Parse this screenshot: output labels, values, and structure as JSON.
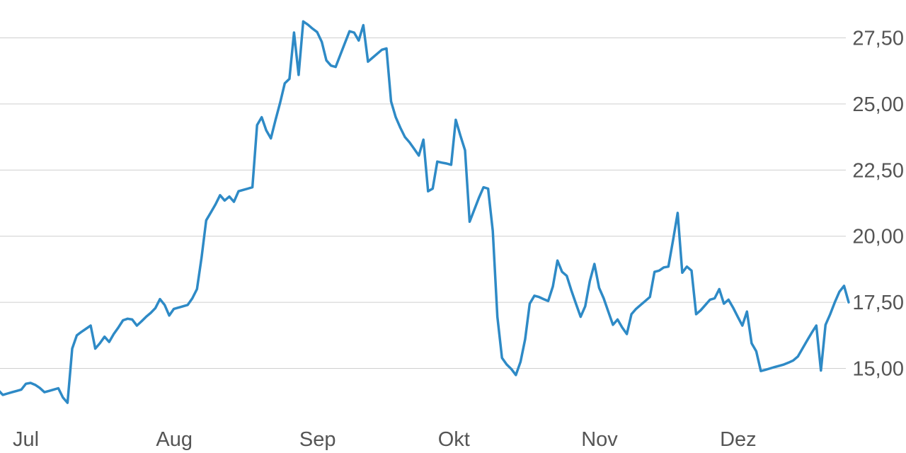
{
  "chart_data": {
    "type": "line",
    "title": "",
    "xlabel": "",
    "ylabel": "",
    "grid": true,
    "y_axis_side": "right",
    "ylim": [
      13.4,
      28.6
    ],
    "y_ticks": [
      15,
      17.5,
      20,
      22.5,
      25,
      27.5
    ],
    "y_tick_labels": [
      "15,00",
      "17,50",
      "20,00",
      "22,50",
      "25,00",
      "27,50"
    ],
    "x_ticks": [
      {
        "label": "Jul",
        "day": 0
      },
      {
        "label": "Aug",
        "day": 31
      },
      {
        "label": "Sep",
        "day": 62
      },
      {
        "label": "Okt",
        "day": 92
      },
      {
        "label": "Nov",
        "day": 123
      },
      {
        "label": "Dez",
        "day": 153
      }
    ],
    "series_color": "#2e8ac6",
    "series": [
      {
        "name": "",
        "x": [
          -4.9,
          -4.0,
          -3.2,
          -2.6,
          -2.0,
          -1.0,
          0.0,
          1.0,
          2.0,
          3.0,
          4.0,
          5.0,
          6.0,
          7.0,
          8.0,
          9.0,
          10.0,
          11.0,
          12.0,
          13.0,
          14.0,
          15.0,
          16.0,
          17.0,
          18.0,
          19.0,
          20.0,
          21.0,
          22.0,
          23.0,
          24.0,
          25.0,
          26.0,
          27.0,
          28.0,
          29.0,
          30.0,
          31.0,
          32.0,
          33.0,
          34.0,
          35.0,
          36.0,
          37.0,
          38.0,
          39.0,
          40.0,
          41.0,
          42.0,
          43.0,
          44.0,
          45.0,
          46.0,
          47.0,
          48.0,
          49.0,
          50.0,
          51.0,
          52.0,
          53.0,
          54.0,
          55.0,
          56.0,
          57.0,
          58.0,
          59.0,
          60.0,
          61.0,
          62.0,
          63.0,
          64.0,
          65.0,
          66.0,
          67.0,
          68.0,
          69.0,
          70.0,
          71.0,
          72.0,
          73.0,
          74.0,
          75.0,
          76.0,
          77.0,
          78.0,
          79.0,
          80.0,
          81.0,
          82.0,
          83.0,
          84.0,
          85.0,
          86.0,
          87.0,
          88.0,
          89.0,
          90.0,
          91.0,
          92.0,
          93.0,
          94.0,
          95.0,
          96.0,
          97.0,
          98.0,
          99.0,
          100.0,
          101.0,
          102.0,
          103.0,
          104.0,
          105.0,
          106.0,
          107.0,
          108.0,
          109.0,
          110.0,
          111.0,
          112.0,
          113.0,
          114.0,
          115.0,
          116.0,
          117.0,
          118.0,
          119.0,
          120.0,
          121.0,
          122.0,
          123.0,
          124.0,
          125.0,
          126.0,
          127.0,
          128.0,
          129.0,
          130.0,
          131.0,
          132.0,
          133.0,
          134.0,
          135.0,
          136.0,
          137.0,
          138.0,
          139.0,
          140.0,
          141.0,
          142.0,
          143.0,
          144.0,
          145.0,
          146.0,
          147.0,
          148.0,
          149.0,
          150.0,
          151.0,
          152.0,
          153.0,
          154.0,
          155.0,
          156.0,
          157.0,
          158.0,
          159.0,
          160.0,
          161.0,
          162.0,
          163.0,
          164.0,
          165.0,
          166.0,
          167.0,
          168.0,
          169.0,
          170.0,
          171.0,
          172.0,
          173.0,
          174.0,
          175.0,
          176.0,
          177.0,
          178.0,
          179.0,
          180.0,
          181.0,
          182.0,
          183.0
        ],
        "values": [
          14.12,
          14.1,
          14.04,
          13.92,
          14.05,
          14.18,
          14.0,
          14.05,
          14.1,
          14.15,
          14.2,
          14.42,
          14.45,
          14.38,
          14.26,
          14.1,
          14.15,
          14.2,
          14.25,
          13.9,
          13.7,
          15.75,
          16.25,
          16.38,
          16.5,
          16.62,
          15.75,
          15.95,
          16.2,
          16.0,
          16.3,
          16.55,
          16.82,
          16.88,
          16.85,
          16.62,
          16.78,
          16.95,
          17.1,
          17.28,
          17.62,
          17.4,
          17.0,
          17.25,
          17.3,
          17.35,
          17.4,
          17.65,
          18.0,
          19.2,
          20.6,
          20.9,
          21.2,
          21.55,
          21.35,
          21.5,
          21.3,
          21.7,
          21.75,
          21.8,
          21.85,
          24.2,
          24.5,
          24.0,
          23.7,
          24.4,
          25.05,
          25.78,
          25.95,
          27.7,
          26.1,
          28.12,
          28.0,
          27.85,
          27.72,
          27.35,
          26.65,
          26.45,
          26.4,
          26.85,
          27.3,
          27.75,
          27.7,
          27.4,
          27.98,
          26.6,
          26.75,
          26.9,
          27.05,
          27.1,
          25.1,
          24.5,
          24.1,
          23.75,
          23.55,
          23.3,
          23.05,
          23.65,
          21.7,
          21.8,
          22.82,
          22.78,
          22.75,
          22.7,
          24.4,
          23.8,
          23.25,
          20.55,
          21.0,
          21.45,
          21.85,
          21.8,
          20.2,
          16.95,
          15.4,
          15.15,
          14.98,
          14.75,
          15.25,
          16.1,
          17.45,
          17.75,
          17.7,
          17.62,
          17.55,
          18.1,
          19.08,
          18.65,
          18.5,
          17.95,
          17.45,
          16.95,
          17.35,
          18.3,
          18.95,
          18.05,
          17.65,
          17.15,
          16.65,
          16.85,
          16.55,
          16.3,
          17.05,
          17.25,
          17.4,
          17.55,
          17.7,
          18.65,
          18.7,
          18.82,
          18.85,
          19.85,
          20.88,
          18.62,
          18.85,
          18.7,
          17.05,
          17.2,
          17.4,
          17.6,
          17.65,
          18.0,
          17.45,
          17.6,
          17.3,
          16.95,
          16.62,
          17.15,
          15.95,
          15.65,
          14.9,
          14.95,
          15.0,
          15.05,
          15.1,
          15.15,
          15.22,
          15.3,
          15.45,
          15.75,
          16.05,
          16.35,
          16.62,
          14.92,
          16.65,
          17.05,
          17.5,
          17.9,
          18.12,
          17.5
        ]
      }
    ]
  }
}
